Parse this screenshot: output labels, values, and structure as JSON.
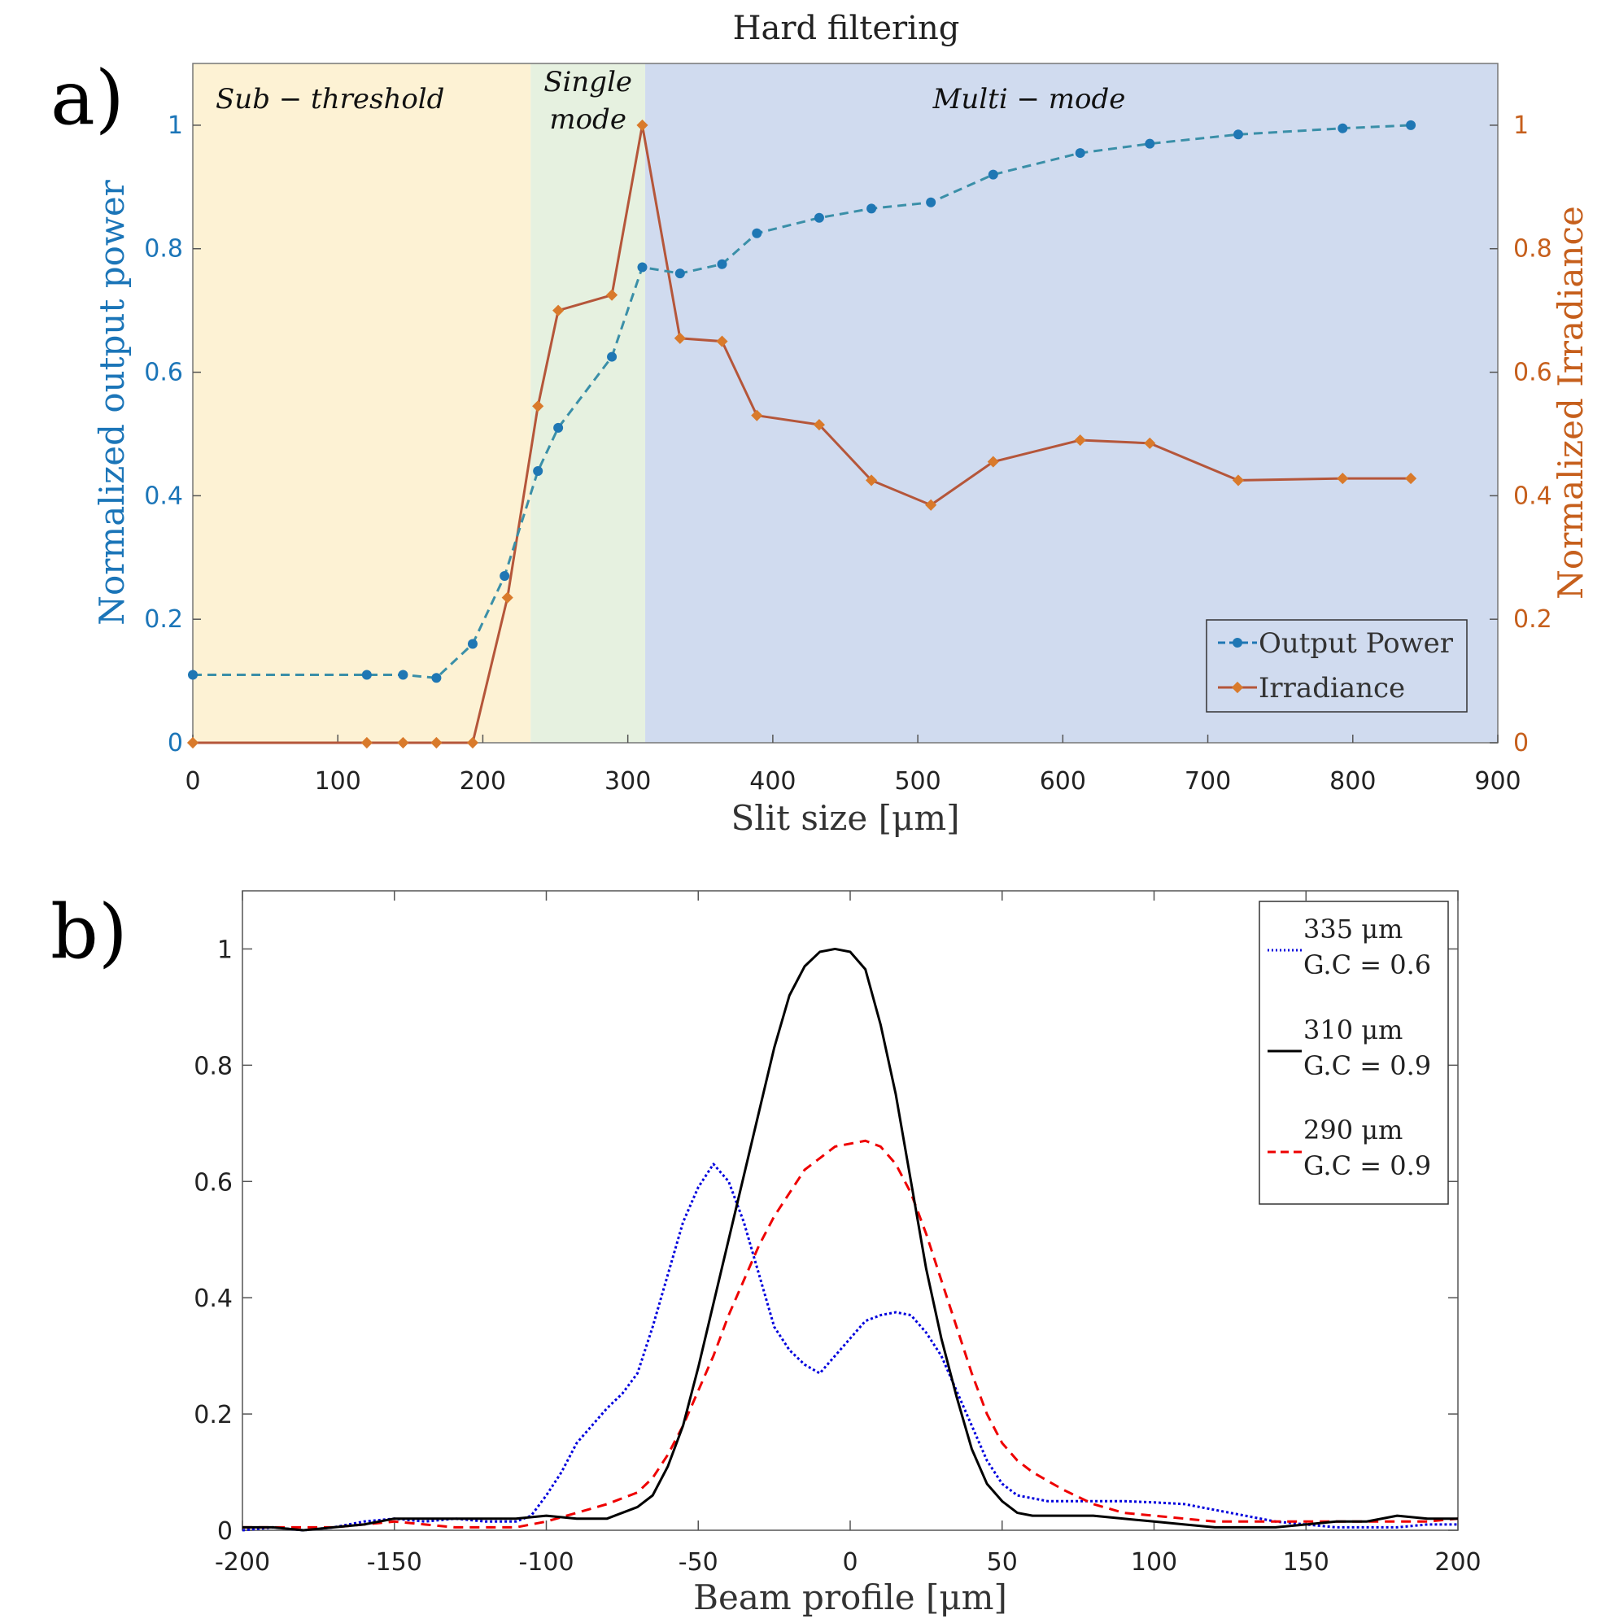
{
  "panel_labels": [
    "a)",
    "b)"
  ],
  "colors": {
    "power": "#1f77b4",
    "power_line": "#3a8fa8",
    "irradiance": "#d97a2b",
    "irradiance_line": "#b5563a",
    "axis_left_a": "#1b75b8",
    "axis_right_a": "#c65f1c",
    "region_sub": "#fdf2d4",
    "region_single": "#e6f1e0",
    "region_multi": "#d0dbef",
    "profile_335": "#0000dd",
    "profile_310": "#000000",
    "profile_290": "#ee0000"
  },
  "chart_data": [
    {
      "type": "line",
      "title": "Hard filtering",
      "xlabel": "Slit size [μm]",
      "ylabel": "Normalized output power",
      "ylabel_right": "Normalized Irradiance",
      "xlim": [
        0,
        900
      ],
      "ylim": [
        0,
        1.1
      ],
      "ylim_right": [
        0,
        1.1
      ],
      "xticks": [
        0,
        100,
        200,
        300,
        400,
        500,
        600,
        700,
        800,
        900
      ],
      "yticks": [
        0,
        0.2,
        0.4,
        0.6,
        0.8,
        1
      ],
      "ytick_labels": [
        "0",
        "0.2",
        "0.4",
        "0.6",
        "0.8",
        "1"
      ],
      "regions": [
        {
          "label": "Sub − threshold",
          "x0": 0,
          "x1": 233
        },
        {
          "label": "Single",
          "label2": "mode",
          "x0": 233,
          "x1": 312
        },
        {
          "label": "Multi − mode",
          "x0": 312,
          "x1": 900
        }
      ],
      "legend_position": "bottom-right",
      "series": [
        {
          "name": "Output Power",
          "axis": "left",
          "style": "dashed",
          "marker": "circle",
          "x": [
            0,
            120,
            145,
            168,
            193,
            215,
            238,
            252,
            289,
            310,
            336,
            365,
            389,
            432,
            468,
            509,
            552,
            612,
            660,
            721,
            793,
            840
          ],
          "y": [
            0.11,
            0.11,
            0.11,
            0.105,
            0.16,
            0.27,
            0.44,
            0.51,
            0.625,
            0.77,
            0.76,
            0.775,
            0.825,
            0.85,
            0.865,
            0.875,
            0.92,
            0.955,
            0.97,
            0.985,
            0.995,
            1.0
          ]
        },
        {
          "name": "Irradiance",
          "axis": "right",
          "style": "solid",
          "marker": "diamond",
          "x": [
            0,
            120,
            145,
            168,
            193,
            217,
            238,
            252,
            289,
            310,
            336,
            365,
            389,
            432,
            468,
            509,
            552,
            612,
            660,
            721,
            793,
            840
          ],
          "y": [
            0,
            0,
            0,
            0,
            0,
            0.235,
            0.545,
            0.7,
            0.725,
            1.0,
            0.655,
            0.65,
            0.53,
            0.515,
            0.425,
            0.385,
            0.455,
            0.49,
            0.485,
            0.425,
            0.428,
            0.428
          ]
        }
      ]
    },
    {
      "type": "line",
      "title": "",
      "xlabel": "Beam profile [μm]",
      "ylabel": "",
      "xlim": [
        -200,
        200
      ],
      "ylim": [
        0,
        1.1
      ],
      "xticks": [
        -200,
        -150,
        -100,
        -50,
        0,
        50,
        100,
        150,
        200
      ],
      "yticks": [
        0,
        0.2,
        0.4,
        0.6,
        0.8,
        1
      ],
      "ytick_labels": [
        "0",
        "0.2",
        "0.4",
        "0.6",
        "0.8",
        "1"
      ],
      "legend_position": "top-right",
      "series": [
        {
          "name": "335 μm",
          "gc": "G.C = 0.6",
          "style": "dotted",
          "x": [
            -200,
            -190,
            -180,
            -170,
            -160,
            -150,
            -140,
            -130,
            -120,
            -110,
            -105,
            -100,
            -95,
            -90,
            -85,
            -80,
            -75,
            -70,
            -65,
            -60,
            -55,
            -50,
            -45,
            -40,
            -35,
            -30,
            -25,
            -20,
            -15,
            -10,
            -5,
            0,
            5,
            10,
            15,
            20,
            25,
            30,
            35,
            40,
            45,
            50,
            55,
            60,
            65,
            70,
            75,
            80,
            90,
            100,
            110,
            120,
            130,
            140,
            150,
            160,
            170,
            180,
            190,
            200
          ],
          "y": [
            0.0,
            0.005,
            0.0,
            0.005,
            0.015,
            0.02,
            0.015,
            0.02,
            0.015,
            0.015,
            0.025,
            0.06,
            0.1,
            0.15,
            0.18,
            0.21,
            0.235,
            0.27,
            0.35,
            0.44,
            0.53,
            0.59,
            0.63,
            0.6,
            0.53,
            0.44,
            0.35,
            0.31,
            0.285,
            0.27,
            0.3,
            0.33,
            0.36,
            0.37,
            0.375,
            0.37,
            0.34,
            0.3,
            0.24,
            0.18,
            0.12,
            0.08,
            0.06,
            0.055,
            0.05,
            0.05,
            0.05,
            0.05,
            0.05,
            0.048,
            0.045,
            0.035,
            0.025,
            0.015,
            0.01,
            0.005,
            0.005,
            0.005,
            0.01,
            0.01
          ]
        },
        {
          "name": "310 μm",
          "gc": "G.C = 0.9",
          "style": "solid",
          "x": [
            -200,
            -190,
            -180,
            -170,
            -160,
            -150,
            -140,
            -130,
            -120,
            -110,
            -100,
            -90,
            -80,
            -75,
            -70,
            -65,
            -60,
            -55,
            -50,
            -45,
            -40,
            -35,
            -30,
            -25,
            -20,
            -15,
            -10,
            -5,
            0,
            5,
            10,
            15,
            20,
            25,
            30,
            35,
            40,
            45,
            50,
            55,
            60,
            65,
            70,
            80,
            90,
            100,
            110,
            120,
            130,
            140,
            150,
            160,
            170,
            180,
            190,
            200
          ],
          "y": [
            0.005,
            0.005,
            0.0,
            0.005,
            0.01,
            0.02,
            0.02,
            0.02,
            0.02,
            0.02,
            0.025,
            0.02,
            0.02,
            0.03,
            0.04,
            0.06,
            0.11,
            0.18,
            0.28,
            0.39,
            0.5,
            0.61,
            0.72,
            0.83,
            0.92,
            0.97,
            0.995,
            1.0,
            0.995,
            0.965,
            0.87,
            0.75,
            0.6,
            0.45,
            0.33,
            0.23,
            0.14,
            0.08,
            0.05,
            0.03,
            0.025,
            0.025,
            0.025,
            0.025,
            0.02,
            0.015,
            0.01,
            0.005,
            0.005,
            0.005,
            0.01,
            0.015,
            0.015,
            0.025,
            0.02,
            0.02
          ]
        },
        {
          "name": "290 μm",
          "gc": "G.C = 0.9",
          "style": "dashed",
          "x": [
            -200,
            -190,
            -180,
            -170,
            -160,
            -150,
            -140,
            -130,
            -120,
            -110,
            -100,
            -90,
            -80,
            -70,
            -65,
            -60,
            -55,
            -50,
            -45,
            -40,
            -35,
            -30,
            -25,
            -20,
            -15,
            -10,
            -5,
            0,
            5,
            10,
            15,
            20,
            25,
            30,
            35,
            40,
            45,
            50,
            55,
            60,
            70,
            80,
            90,
            100,
            110,
            120,
            130,
            140,
            150,
            160,
            170,
            180,
            190,
            200
          ],
          "y": [
            0.005,
            0.005,
            0.005,
            0.005,
            0.01,
            0.015,
            0.01,
            0.005,
            0.005,
            0.005,
            0.015,
            0.03,
            0.045,
            0.065,
            0.09,
            0.13,
            0.18,
            0.24,
            0.3,
            0.37,
            0.43,
            0.49,
            0.54,
            0.58,
            0.62,
            0.64,
            0.66,
            0.665,
            0.67,
            0.66,
            0.63,
            0.58,
            0.51,
            0.43,
            0.35,
            0.27,
            0.2,
            0.15,
            0.12,
            0.1,
            0.07,
            0.045,
            0.03,
            0.025,
            0.02,
            0.015,
            0.015,
            0.015,
            0.015,
            0.015,
            0.015,
            0.015,
            0.015,
            0.02
          ]
        }
      ]
    }
  ]
}
